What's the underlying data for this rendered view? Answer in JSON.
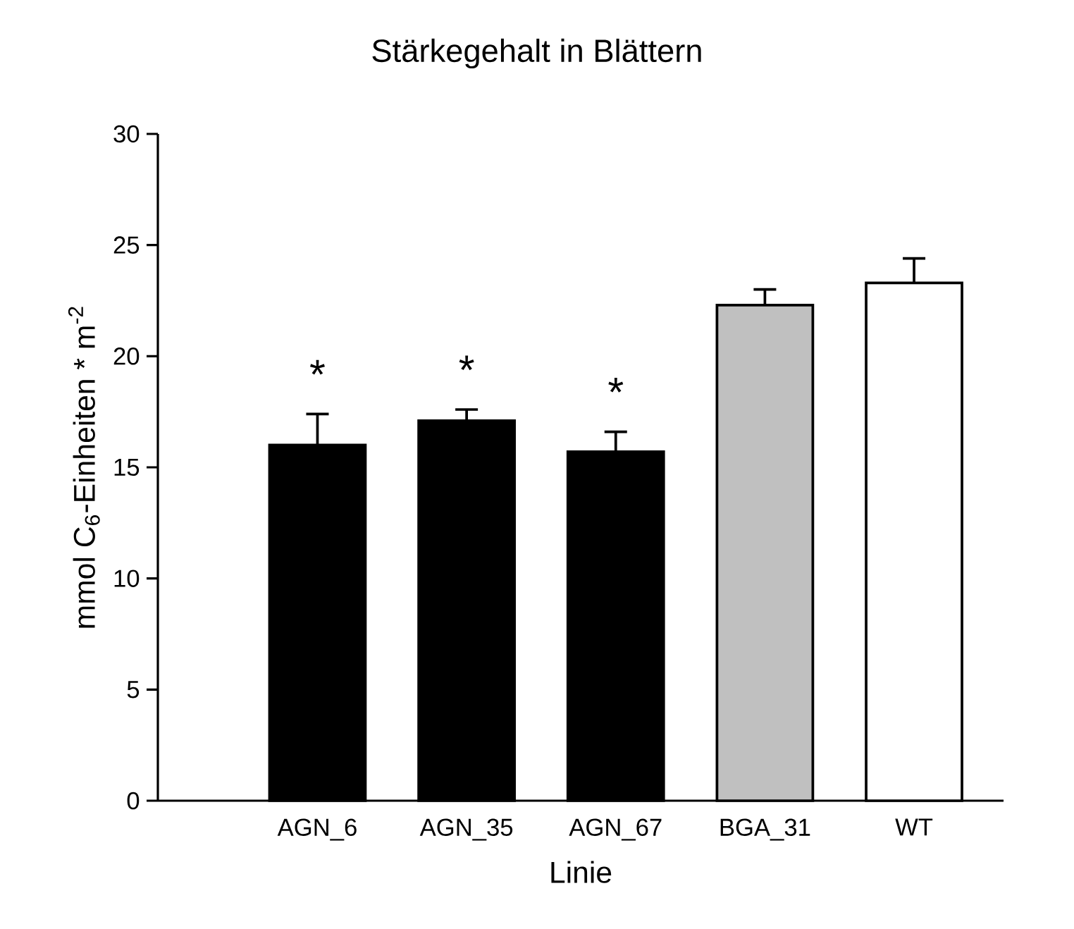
{
  "chart_data": {
    "type": "bar",
    "title": "Stärkegehalt in Blättern",
    "xlabel": "Linie",
    "ylabel": "mmol C$_{6}$-Einheiten * m$^{-2}$",
    "categories": [
      "AGN_6",
      "AGN_35",
      "AGN_67",
      "BGA_31",
      "WT"
    ],
    "values": [
      16.0,
      17.1,
      15.7,
      22.3,
      23.3
    ],
    "colors": [
      "#000000",
      "#000000",
      "#000000",
      "#c0c0c0",
      "#ffffff"
    ],
    "errors": [
      1.4,
      0.5,
      0.9,
      0.7,
      1.1
    ],
    "ylim": [
      0,
      30
    ],
    "yticks": [
      0,
      5,
      10,
      15,
      20,
      25,
      30
    ],
    "grid": false,
    "annotations": [
      "*",
      "*",
      "*"
    ]
  }
}
